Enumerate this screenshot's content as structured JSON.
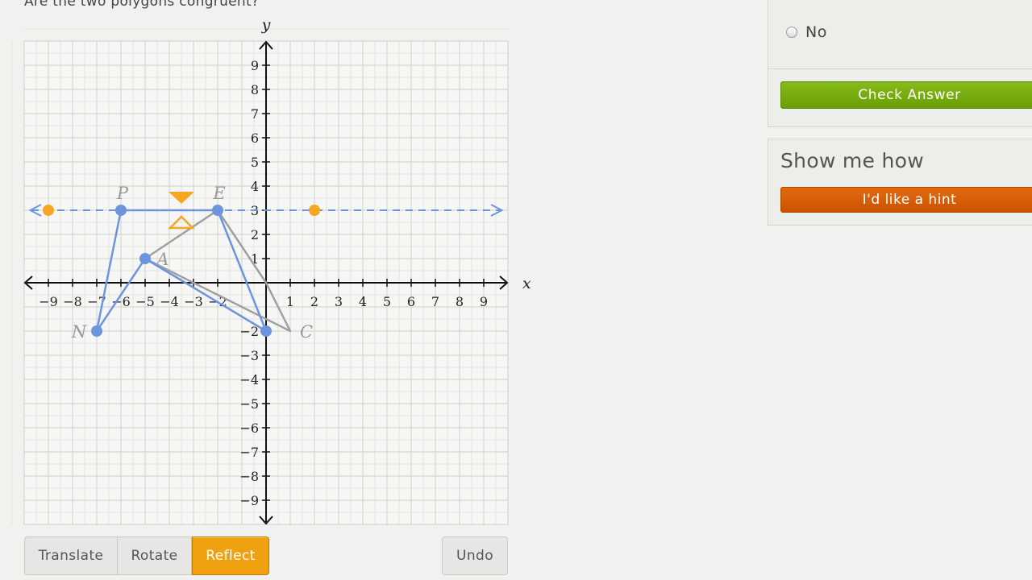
{
  "question": "Are the two polygons congruent?",
  "graph": {
    "x_axis_label": "x",
    "y_axis_label": "y",
    "x_ticks": [
      "−9",
      "−8",
      "−7",
      "−6",
      "−5",
      "−4",
      "−3",
      "−2",
      "1",
      "2",
      "3",
      "4",
      "5",
      "6",
      "7",
      "8",
      "9"
    ],
    "y_ticks": [
      "9",
      "8",
      "7",
      "6",
      "5",
      "4",
      "3",
      "2",
      "1",
      "−2",
      "−3",
      "−4",
      "−5",
      "−6",
      "−7",
      "−8",
      "−9"
    ],
    "range": {
      "xmin": -10,
      "xmax": 10,
      "ymin": -10,
      "ymax": 10
    },
    "original_polygon": {
      "color": "#a0a0a0",
      "vertices": [
        {
          "name": "E",
          "x": -2,
          "y": 3
        },
        {
          "name": "",
          "x": 0,
          "y": 0
        },
        {
          "name": "C",
          "x": 1,
          "y": -2
        },
        {
          "name": "A",
          "x": -5,
          "y": 1
        }
      ]
    },
    "image_polygon": {
      "color": "#6d95de",
      "vertices": [
        {
          "name": "P",
          "x": -6,
          "y": 3
        },
        {
          "name": "",
          "x": -2,
          "y": 3
        },
        {
          "name": "",
          "x": 0,
          "y": -2
        },
        {
          "name": "",
          "x": -5,
          "y": 1
        },
        {
          "name": "N",
          "x": -7,
          "y": -2
        }
      ]
    },
    "reflection_line": {
      "color": "#6d95de",
      "y": 3,
      "handles": [
        {
          "x": -9,
          "y": 3
        },
        {
          "x": 2,
          "y": 3
        }
      ],
      "handle_color": "#f5a623",
      "flip_control": {
        "x": -3.5,
        "y": 3
      }
    }
  },
  "tools": {
    "translate": "Translate",
    "rotate": "Rotate",
    "reflect": "Reflect",
    "undo": "Undo"
  },
  "answer_panel": {
    "choice_no": "No",
    "check_button": "Check Answer"
  },
  "hint_panel": {
    "title": "Show me how",
    "hint_button": "I'd like a hint"
  }
}
